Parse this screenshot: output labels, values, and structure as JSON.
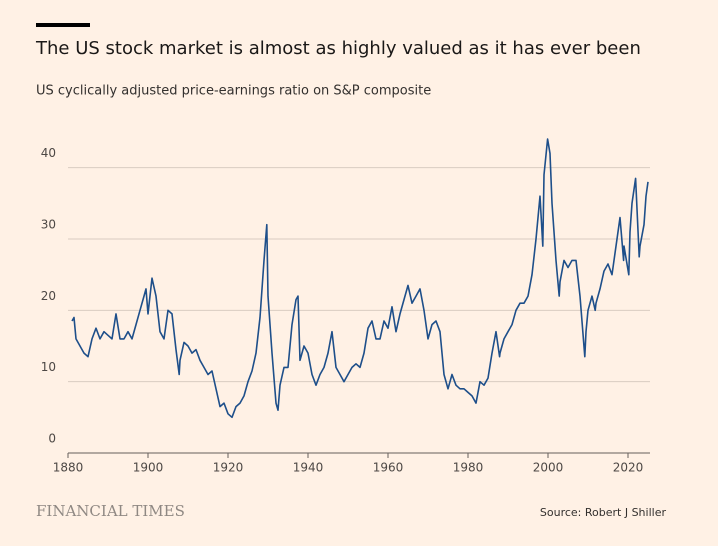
{
  "chart_data": {
    "type": "line",
    "title": "The US stock market is almost as highly valued as it has ever been",
    "subtitle": "US cyclically adjusted price-earnings ratio on S&P composite",
    "brand": "FINANCIAL TIMES",
    "source": "Source: Robert J Shiller",
    "xlim": [
      1880,
      2025.5
    ],
    "xticks": [
      1880,
      1900,
      1920,
      1940,
      1960,
      1980,
      2000,
      2020
    ],
    "ylim": [
      0,
      45
    ],
    "yticks": [
      0,
      10,
      20,
      30,
      40
    ],
    "grid": true,
    "series": [
      {
        "name": "CAPE",
        "color": "#1e4f8a",
        "x": [
          1881,
          1881.5,
          1882,
          1883,
          1884,
          1885,
          1886,
          1887,
          1888,
          1889,
          1890,
          1891,
          1892,
          1893,
          1894,
          1895,
          1896,
          1897,
          1898,
          1899,
          1899.5,
          1900,
          1901,
          1902,
          1903,
          1904,
          1905,
          1906,
          1907,
          1907.8,
          1908,
          1909,
          1910,
          1911,
          1912,
          1913,
          1914,
          1915,
          1916,
          1917,
          1918,
          1919,
          1920,
          1921,
          1922,
          1923,
          1924,
          1925,
          1926,
          1927,
          1928,
          1929,
          1929.7,
          1930,
          1931,
          1932,
          1932.5,
          1933,
          1934,
          1935,
          1936,
          1937,
          1937.5,
          1938,
          1939,
          1940,
          1941,
          1942,
          1943,
          1944,
          1945,
          1946,
          1947,
          1948,
          1949,
          1950,
          1951,
          1952,
          1953,
          1954,
          1955,
          1956,
          1957,
          1958,
          1959,
          1960,
          1961,
          1962,
          1963,
          1964,
          1965,
          1966,
          1967,
          1968,
          1969,
          1970,
          1971,
          1972,
          1973,
          1974,
          1975,
          1976,
          1977,
          1978,
          1979,
          1980,
          1981,
          1982,
          1983,
          1984,
          1985,
          1986,
          1987,
          1987.9,
          1988,
          1989,
          1990,
          1991,
          1992,
          1993,
          1994,
          1995,
          1996,
          1997,
          1998,
          1998.7,
          1999,
          1999.9,
          2000.5,
          2001,
          2002,
          2002.8,
          2003,
          2004,
          2005,
          2006,
          2007,
          2008,
          2009.2,
          2009.5,
          2010,
          2011,
          2011.8,
          2012,
          2013,
          2014,
          2015,
          2016,
          2017,
          2018,
          2018.9,
          2019,
          2020.2,
          2020.5,
          2021,
          2021.9,
          2022.8,
          2023,
          2024,
          2024.5,
          2025
        ],
        "values": [
          18.5,
          19,
          16,
          15,
          14,
          13.5,
          16,
          17.5,
          16,
          17,
          16.5,
          16,
          19.5,
          16,
          16,
          17,
          16,
          18,
          20,
          22,
          23,
          19.5,
          24.5,
          22,
          17,
          16,
          20,
          19.5,
          14.5,
          11,
          13,
          15.5,
          15,
          14,
          14.5,
          13,
          12,
          11,
          11.5,
          9,
          6.5,
          7,
          5.5,
          5,
          6.5,
          7,
          8,
          10,
          11.5,
          14,
          19,
          27,
          32,
          22,
          14,
          7,
          6,
          9.5,
          12,
          12,
          18,
          21.5,
          22,
          13,
          15,
          14,
          11,
          9.5,
          11,
          12,
          14,
          17,
          12,
          11,
          10,
          11,
          12,
          12.5,
          12,
          14,
          17.5,
          18.5,
          16,
          16,
          18.5,
          17.5,
          20.5,
          17,
          19.5,
          21.5,
          23.5,
          21,
          22,
          23,
          20,
          16,
          18,
          18.5,
          17,
          11,
          9,
          11,
          9.5,
          9,
          9,
          8.5,
          8,
          7,
          10,
          9.5,
          10.5,
          14,
          17,
          13.5,
          14,
          16,
          17,
          18,
          20,
          21,
          21,
          22,
          25,
          30,
          36,
          29,
          39,
          44,
          42,
          35,
          27,
          22,
          24,
          27,
          26,
          27,
          27,
          22,
          13.5,
          17,
          20,
          22,
          20,
          21,
          23,
          25.5,
          26.5,
          25,
          29,
          33,
          27,
          29,
          25,
          31,
          35,
          38.5,
          27.5,
          29,
          32,
          36,
          38
        ]
      }
    ]
  }
}
